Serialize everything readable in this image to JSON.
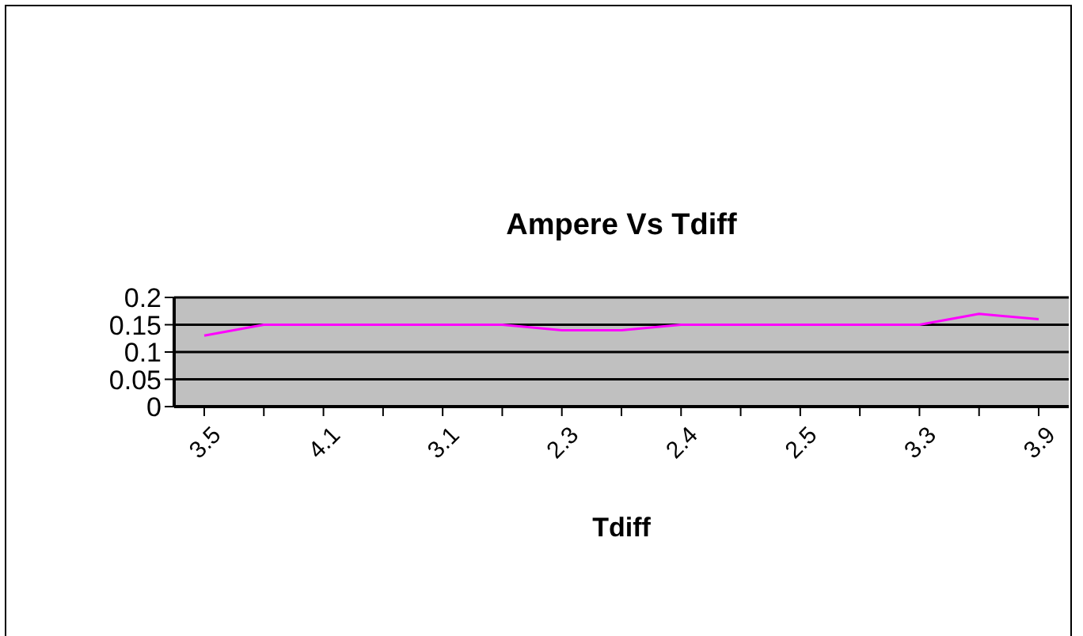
{
  "chart_data": {
    "type": "line",
    "title": "Ampere Vs Tdiff",
    "xlabel": "Tdiff",
    "categories": [
      "3.5",
      null,
      "4.1",
      null,
      "3.1",
      null,
      "2.3",
      null,
      "2.4",
      null,
      "2.5",
      null,
      "3.3",
      null,
      "3.9"
    ],
    "series": [
      {
        "color": "#ff00ff",
        "values": [
          0.13,
          0.15,
          0.15,
          0.15,
          0.15,
          0.15,
          0.14,
          0.14,
          0.15,
          0.15,
          0.15,
          0.15,
          0.15,
          0.17,
          0.16
        ]
      }
    ],
    "ylim": [
      0,
      0.2
    ],
    "yticks": [
      0,
      0.05,
      0.1,
      0.15,
      0.2
    ],
    "grid": "y",
    "legend": false,
    "marker": "none",
    "line_style": "solid"
  }
}
